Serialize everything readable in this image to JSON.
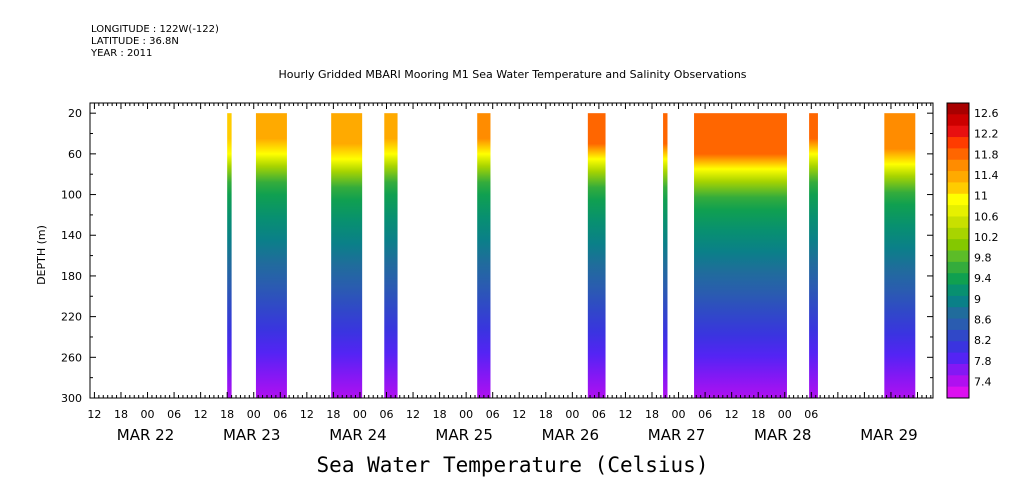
{
  "header": {
    "longitude": "LONGITUDE : 122W(-122)",
    "latitude": "LATITUDE : 36.8N",
    "year": "YEAR : 2011"
  },
  "chart_data": {
    "type": "heatmap",
    "title": "Hourly Gridded MBARI Mooring M1 Sea Water Temperature and Salinity Observations",
    "bottom_title": "Sea Water Temperature (Celsius)",
    "ylabel": "DEPTH (m)",
    "ylim": [
      300,
      10
    ],
    "y_ticks": [
      20,
      60,
      100,
      140,
      180,
      220,
      260,
      300
    ],
    "x_hour_labels": [
      "12",
      "18",
      "00",
      "06",
      "12",
      "18",
      "00",
      "06",
      "12",
      "18",
      "00",
      "06",
      "12",
      "18",
      "00",
      "06",
      "12",
      "18",
      "00",
      "06",
      "12",
      "18",
      "00",
      "06",
      "12",
      "18",
      "00",
      "06"
    ],
    "x_day_labels": [
      "MAR 22",
      "MAR 23",
      "MAR 24",
      "MAR 25",
      "MAR 26",
      "MAR 27",
      "MAR 28",
      "MAR 29"
    ],
    "colorbar": {
      "levels": [
        "12.6",
        "12.2",
        "11.8",
        "11.4",
        "11",
        "10.6",
        "10.2",
        "9.8",
        "9.4",
        "9",
        "8.6",
        "8.2",
        "7.8",
        "7.4"
      ],
      "colors": [
        "#a80000",
        "#cc0000",
        "#e81010",
        "#ff3c00",
        "#ff6600",
        "#ff8c00",
        "#ffaa00",
        "#ffcc00",
        "#ffff00",
        "#e6f000",
        "#c8e000",
        "#a8d400",
        "#84c800",
        "#5cbc28",
        "#34ac3c",
        "#10a050",
        "#089070",
        "#0a8088",
        "#206c9c",
        "#2a5cb0",
        "#3048c8",
        "#3a34e0",
        "#5424f4",
        "#8418f4",
        "#b010f0",
        "#dd10f0"
      ]
    },
    "data_blocks": [
      {
        "start": "MAR 22 18:00",
        "end": "MAR 22 19:00",
        "surface_temp": 11.0,
        "thermocline_depth_m": 60,
        "surface_color": "#ffcc00"
      },
      {
        "start": "MAR 23 00:30",
        "end": "MAR 23 07:30",
        "surface_temp": 11.6,
        "thermocline_depth_m": 60,
        "surface_color": "#ffaa00"
      },
      {
        "start": "MAR 23 17:30",
        "end": "MAR 24 00:30",
        "surface_temp": 11.6,
        "thermocline_depth_m": 65,
        "surface_color": "#ffaa00"
      },
      {
        "start": "MAR 24 05:30",
        "end": "MAR 24 08:30",
        "surface_temp": 11.4,
        "thermocline_depth_m": 60,
        "surface_color": "#ffaa00"
      },
      {
        "start": "MAR 25 02:30",
        "end": "MAR 25 05:30",
        "surface_temp": 11.9,
        "thermocline_depth_m": 60,
        "surface_color": "#ff8c00"
      },
      {
        "start": "MAR 26 03:30",
        "end": "MAR 26 07:30",
        "surface_temp": 12.1,
        "thermocline_depth_m": 65,
        "surface_color": "#ff6600"
      },
      {
        "start": "MAR 26 20:30",
        "end": "MAR 26 21:30",
        "surface_temp": 12.1,
        "thermocline_depth_m": 65,
        "surface_color": "#ff6600"
      },
      {
        "start": "MAR 27 03:30",
        "end": "MAR 28 00:30",
        "surface_temp": 12.2,
        "thermocline_depth_m": 75,
        "surface_color": "#ff6600"
      },
      {
        "start": "MAR 28 05:30",
        "end": "MAR 28 07:30",
        "surface_temp": 12.0,
        "thermocline_depth_m": 60,
        "surface_color": "#ff6600"
      },
      {
        "start": "MAR 28 22:30",
        "end": "MAR 29 05:30",
        "surface_temp": 11.8,
        "thermocline_depth_m": 70,
        "surface_color": "#ff8c00"
      }
    ]
  }
}
